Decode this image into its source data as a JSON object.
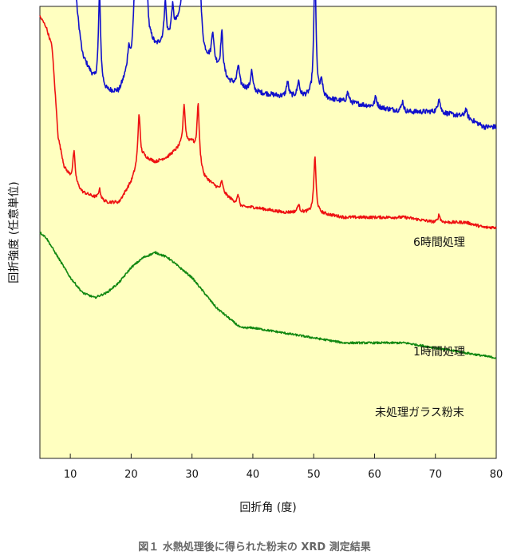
{
  "caption": "図１ 水熱処理後に得られた粉末の XRD 測定結果",
  "colors": {
    "plot_bg": "#ffffc0",
    "series_6h": "#1010cc",
    "series_1h": "#ee1111",
    "series_untreated": "#118811"
  },
  "chart_data": {
    "type": "line",
    "title": "",
    "xlabel": "回折角 (度)",
    "ylabel": "回折強度 (任意単位)",
    "xlim": [
      5,
      80
    ],
    "x_ticks": [
      10,
      20,
      30,
      40,
      50,
      60,
      70,
      80
    ],
    "y_ticks_visible": false,
    "grid": false,
    "series": [
      {
        "name": "6時間処理",
        "color": "#1010cc",
        "baseline": [
          [
            5,
            0.59
          ],
          [
            6,
            0.61
          ],
          [
            8,
            0.7
          ],
          [
            9,
            0.66
          ],
          [
            10,
            0.6
          ],
          [
            12,
            0.42
          ],
          [
            14,
            0.37
          ],
          [
            16,
            0.35
          ],
          [
            18,
            0.35
          ],
          [
            19,
            0.38
          ],
          [
            20,
            0.41
          ],
          [
            21,
            0.5
          ],
          [
            22,
            0.55
          ],
          [
            23,
            0.46
          ],
          [
            24,
            0.44
          ],
          [
            26,
            0.45
          ],
          [
            28,
            0.49
          ],
          [
            30,
            0.52
          ],
          [
            32,
            0.42
          ],
          [
            34,
            0.4
          ],
          [
            36,
            0.37
          ],
          [
            38,
            0.36
          ],
          [
            40,
            0.35
          ],
          [
            45,
            0.34
          ],
          [
            50,
            0.34
          ],
          [
            55,
            0.33
          ],
          [
            60,
            0.32
          ],
          [
            65,
            0.31
          ],
          [
            70,
            0.31
          ],
          [
            75,
            0.3
          ],
          [
            78,
            0.28
          ],
          [
            80,
            0.28
          ]
        ],
        "peaks": [
          [
            7.4,
            0.23
          ],
          [
            9.7,
            0.16
          ],
          [
            10.6,
            0.08
          ],
          [
            14.8,
            0.18
          ],
          [
            19.6,
            0.04
          ],
          [
            20.5,
            0.06
          ],
          [
            21.3,
            0.21
          ],
          [
            22.4,
            0.13
          ],
          [
            25.6,
            0.08
          ],
          [
            26.8,
            0.05
          ],
          [
            28.7,
            0.22
          ],
          [
            29.9,
            0.1
          ],
          [
            30.3,
            0.13
          ],
          [
            31.0,
            0.43
          ],
          [
            33.4,
            0.06
          ],
          [
            34.9,
            0.08
          ],
          [
            37.6,
            0.04
          ],
          [
            39.8,
            0.04
          ],
          [
            45.7,
            0.03
          ],
          [
            47.5,
            0.03
          ],
          [
            50.2,
            0.25
          ],
          [
            51.3,
            0.03
          ],
          [
            55.6,
            0.02
          ],
          [
            60.2,
            0.02
          ],
          [
            64.6,
            0.02
          ],
          [
            70.6,
            0.03
          ],
          [
            75.0,
            0.015
          ]
        ]
      },
      {
        "name": "1時間処理",
        "color": "#ee1111",
        "baseline": [
          [
            5,
            0.5
          ],
          [
            6,
            0.48
          ],
          [
            7,
            0.44
          ],
          [
            8,
            0.26
          ],
          [
            9,
            0.2
          ],
          [
            10,
            0.18
          ],
          [
            12,
            0.15
          ],
          [
            14,
            0.14
          ],
          [
            16,
            0.13
          ],
          [
            18,
            0.13
          ],
          [
            19,
            0.15
          ],
          [
            20,
            0.17
          ],
          [
            21,
            0.2
          ],
          [
            22,
            0.22
          ],
          [
            24,
            0.21
          ],
          [
            26,
            0.22
          ],
          [
            28,
            0.24
          ],
          [
            30,
            0.25
          ],
          [
            32,
            0.18
          ],
          [
            34,
            0.16
          ],
          [
            36,
            0.14
          ],
          [
            38,
            0.12
          ],
          [
            40,
            0.12
          ],
          [
            45,
            0.11
          ],
          [
            50,
            0.11
          ],
          [
            55,
            0.1
          ],
          [
            60,
            0.1
          ],
          [
            65,
            0.1
          ],
          [
            70,
            0.09
          ],
          [
            75,
            0.09
          ],
          [
            78,
            0.08
          ],
          [
            80,
            0.08
          ]
        ],
        "peaks": [
          [
            10.6,
            0.06
          ],
          [
            14.8,
            0.02
          ],
          [
            21.3,
            0.1
          ],
          [
            28.7,
            0.08
          ],
          [
            31.0,
            0.11
          ],
          [
            34.9,
            0.02
          ],
          [
            37.6,
            0.02
          ],
          [
            47.5,
            0.015
          ],
          [
            50.2,
            0.11
          ],
          [
            70.6,
            0.015
          ]
        ]
      },
      {
        "name": "未処理ガラス粉末",
        "color": "#118811",
        "baseline": [
          [
            5,
            0.07
          ],
          [
            6,
            0.06
          ],
          [
            8,
            0.02
          ],
          [
            10,
            -0.02
          ],
          [
            12,
            -0.05
          ],
          [
            14,
            -0.06
          ],
          [
            16,
            -0.05
          ],
          [
            18,
            -0.03
          ],
          [
            20,
            0.0
          ],
          [
            22,
            0.02
          ],
          [
            24,
            0.03
          ],
          [
            26,
            0.02
          ],
          [
            28,
            0.0
          ],
          [
            30,
            -0.02
          ],
          [
            32,
            -0.05
          ],
          [
            34,
            -0.08
          ],
          [
            36,
            -0.1
          ],
          [
            38,
            -0.12
          ],
          [
            40,
            -0.12
          ],
          [
            45,
            -0.13
          ],
          [
            50,
            -0.14
          ],
          [
            55,
            -0.15
          ],
          [
            60,
            -0.15
          ],
          [
            65,
            -0.15
          ],
          [
            70,
            -0.16
          ],
          [
            75,
            -0.17
          ],
          [
            80,
            -0.18
          ]
        ],
        "peaks": []
      }
    ]
  }
}
